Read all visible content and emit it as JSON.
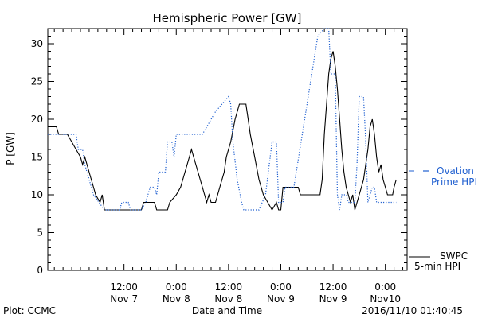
{
  "chart_data": {
    "type": "line",
    "title": "Hemispheric Power [GW]",
    "xlabel": "Date and Time",
    "ylabel": "P [GW]",
    "ylim": [
      0,
      32
    ],
    "yticks": [
      0,
      5,
      10,
      15,
      20,
      25,
      30
    ],
    "xlim": [
      "2016-11-06T18:30",
      "2016-11-10T05:00"
    ],
    "xticks": [
      {
        "t": "2016-11-07T12:00",
        "line1": "12:00",
        "line2": "Nov 7"
      },
      {
        "t": "2016-11-08T00:00",
        "line1": "0:00",
        "line2": "Nov 8"
      },
      {
        "t": "2016-11-08T12:00",
        "line1": "12:00",
        "line2": "Nov 8"
      },
      {
        "t": "2016-11-09T00:00",
        "line1": "0:00",
        "line2": "Nov 9"
      },
      {
        "t": "2016-11-09T12:00",
        "line1": "12:00",
        "line2": "Nov 9"
      },
      {
        "t": "2016-11-10T00:00",
        "line1": "0:00",
        "line2": "Nov10"
      }
    ],
    "grid": false,
    "series": [
      {
        "name": "SWPC 5-min HPI",
        "color": "#000000",
        "style": "solid",
        "points": [
          [
            "2016-11-06T18:30",
            19
          ],
          [
            "2016-11-06T20:30",
            19
          ],
          [
            "2016-11-06T21:00",
            18
          ],
          [
            "2016-11-06T23:00",
            18
          ],
          [
            "2016-11-07T00:00",
            17
          ],
          [
            "2016-11-07T01:00",
            16
          ],
          [
            "2016-11-07T02:00",
            15
          ],
          [
            "2016-11-07T02:30",
            14
          ],
          [
            "2016-11-07T03:00",
            15
          ],
          [
            "2016-11-07T04:00",
            13
          ],
          [
            "2016-11-07T05:00",
            11
          ],
          [
            "2016-11-07T05:30",
            10
          ],
          [
            "2016-11-07T06:30",
            9
          ],
          [
            "2016-11-07T07:00",
            10
          ],
          [
            "2016-11-07T07:30",
            8
          ],
          [
            "2016-11-07T11:00",
            8
          ],
          [
            "2016-11-07T16:00",
            8
          ],
          [
            "2016-11-07T16:30",
            9
          ],
          [
            "2016-11-07T19:00",
            9
          ],
          [
            "2016-11-07T19:30",
            8
          ],
          [
            "2016-11-07T22:00",
            8
          ],
          [
            "2016-11-07T22:30",
            9
          ],
          [
            "2016-11-08T00:00",
            10
          ],
          [
            "2016-11-08T01:00",
            11
          ],
          [
            "2016-11-08T02:00",
            13
          ],
          [
            "2016-11-08T03:00",
            15
          ],
          [
            "2016-11-08T03:30",
            16
          ],
          [
            "2016-11-08T04:00",
            15
          ],
          [
            "2016-11-08T05:00",
            13
          ],
          [
            "2016-11-08T06:00",
            11
          ],
          [
            "2016-11-08T06:30",
            10
          ],
          [
            "2016-11-08T07:00",
            9
          ],
          [
            "2016-11-08T07:30",
            10
          ],
          [
            "2016-11-08T08:00",
            9
          ],
          [
            "2016-11-08T09:00",
            9
          ],
          [
            "2016-11-08T09:30",
            10
          ],
          [
            "2016-11-08T10:00",
            11
          ],
          [
            "2016-11-08T11:00",
            13
          ],
          [
            "2016-11-08T11:30",
            15
          ],
          [
            "2016-11-08T12:30",
            17
          ],
          [
            "2016-11-08T13:30",
            20
          ],
          [
            "2016-11-08T14:30",
            22
          ],
          [
            "2016-11-08T16:00",
            22
          ],
          [
            "2016-11-08T16:30",
            20
          ],
          [
            "2016-11-08T17:00",
            18
          ],
          [
            "2016-11-08T18:00",
            15
          ],
          [
            "2016-11-08T19:00",
            12
          ],
          [
            "2016-11-08T20:00",
            10
          ],
          [
            "2016-11-08T21:00",
            9
          ],
          [
            "2016-11-08T22:00",
            8
          ],
          [
            "2016-11-08T23:00",
            9
          ],
          [
            "2016-11-08T23:30",
            8
          ],
          [
            "2016-11-09T00:00",
            8
          ],
          [
            "2016-11-09T00:30",
            11
          ],
          [
            "2016-11-09T02:00",
            11
          ],
          [
            "2016-11-09T04:00",
            11
          ],
          [
            "2016-11-09T04:30",
            10
          ],
          [
            "2016-11-09T07:30",
            10
          ],
          [
            "2016-11-09T09:00",
            10
          ],
          [
            "2016-11-09T09:30",
            12
          ],
          [
            "2016-11-09T10:00",
            18
          ],
          [
            "2016-11-09T10:30",
            22
          ],
          [
            "2016-11-09T11:00",
            26
          ],
          [
            "2016-11-09T11:30",
            28
          ],
          [
            "2016-11-09T12:00",
            29
          ],
          [
            "2016-11-09T12:30",
            27
          ],
          [
            "2016-11-09T13:00",
            24
          ],
          [
            "2016-11-09T13:30",
            20
          ],
          [
            "2016-11-09T14:00",
            16
          ],
          [
            "2016-11-09T14:30",
            13
          ],
          [
            "2016-11-09T15:00",
            11
          ],
          [
            "2016-11-09T15:30",
            10
          ],
          [
            "2016-11-09T16:00",
            9
          ],
          [
            "2016-11-09T16:30",
            10
          ],
          [
            "2016-11-09T17:00",
            8
          ],
          [
            "2016-11-09T18:00",
            10
          ],
          [
            "2016-11-09T19:00",
            12
          ],
          [
            "2016-11-09T20:00",
            16
          ],
          [
            "2016-11-09T20:30",
            19
          ],
          [
            "2016-11-09T21:00",
            20
          ],
          [
            "2016-11-09T21:30",
            18
          ],
          [
            "2016-11-09T22:00",
            15
          ],
          [
            "2016-11-09T22:30",
            13
          ],
          [
            "2016-11-09T23:00",
            14
          ],
          [
            "2016-11-09T23:30",
            12
          ],
          [
            "2016-11-10T00:00",
            11
          ],
          [
            "2016-11-10T00:30",
            10
          ],
          [
            "2016-11-10T01:40",
            10
          ],
          [
            "2016-11-10T02:00",
            11
          ],
          [
            "2016-11-10T02:30",
            12
          ]
        ]
      },
      {
        "name": "Ovation Prime HPI",
        "color": "#1f5fd0",
        "style": "dotted",
        "points": [
          [
            "2016-11-06T18:30",
            18
          ],
          [
            "2016-11-07T01:00",
            18
          ],
          [
            "2016-11-07T01:30",
            16
          ],
          [
            "2016-11-07T02:30",
            16
          ],
          [
            "2016-11-07T03:00",
            14
          ],
          [
            "2016-11-07T05:00",
            10
          ],
          [
            "2016-11-07T07:30",
            8
          ],
          [
            "2016-11-07T11:00",
            8
          ],
          [
            "2016-11-07T11:30",
            9
          ],
          [
            "2016-11-07T13:00",
            9
          ],
          [
            "2016-11-07T13:30",
            8
          ],
          [
            "2016-11-07T16:00",
            8
          ],
          [
            "2016-11-07T17:00",
            9
          ],
          [
            "2016-11-07T17:30",
            10
          ],
          [
            "2016-11-07T18:00",
            11
          ],
          [
            "2016-11-07T19:00",
            11
          ],
          [
            "2016-11-07T19:30",
            10
          ],
          [
            "2016-11-07T20:00",
            13
          ],
          [
            "2016-11-07T21:30",
            13
          ],
          [
            "2016-11-07T22:00",
            17
          ],
          [
            "2016-11-07T23:00",
            17
          ],
          [
            "2016-11-07T23:30",
            15
          ],
          [
            "2016-11-08T00:00",
            18
          ],
          [
            "2016-11-08T06:00",
            18
          ],
          [
            "2016-11-08T09:00",
            21
          ],
          [
            "2016-11-08T10:30",
            22
          ],
          [
            "2016-11-08T12:00",
            23
          ],
          [
            "2016-11-08T12:30",
            22
          ],
          [
            "2016-11-08T13:00",
            17
          ],
          [
            "2016-11-08T14:00",
            12
          ],
          [
            "2016-11-08T15:00",
            9
          ],
          [
            "2016-11-08T15:30",
            8
          ],
          [
            "2016-11-08T19:00",
            8
          ],
          [
            "2016-11-08T20:30",
            10
          ],
          [
            "2016-11-08T22:00",
            17
          ],
          [
            "2016-11-08T23:00",
            17
          ],
          [
            "2016-11-08T23:30",
            9
          ],
          [
            "2016-11-09T00:30",
            9
          ],
          [
            "2016-11-09T01:00",
            11
          ],
          [
            "2016-11-09T03:00",
            11
          ],
          [
            "2016-11-09T08:30",
            31
          ],
          [
            "2016-11-09T10:00",
            32
          ],
          [
            "2016-11-09T11:00",
            32
          ],
          [
            "2016-11-09T11:30",
            26
          ],
          [
            "2016-11-09T12:30",
            26
          ],
          [
            "2016-11-09T13:00",
            10
          ],
          [
            "2016-11-09T13:30",
            8
          ],
          [
            "2016-11-09T14:00",
            10
          ],
          [
            "2016-11-09T15:00",
            10
          ],
          [
            "2016-11-09T15:30",
            9
          ],
          [
            "2016-11-09T17:00",
            9
          ],
          [
            "2016-11-09T17:30",
            14
          ],
          [
            "2016-11-09T18:00",
            23
          ],
          [
            "2016-11-09T19:00",
            23
          ],
          [
            "2016-11-09T19:30",
            17
          ],
          [
            "2016-11-09T20:00",
            9
          ],
          [
            "2016-11-09T21:00",
            11
          ],
          [
            "2016-11-09T21:30",
            11
          ],
          [
            "2016-11-09T22:00",
            9
          ],
          [
            "2016-11-10T02:30",
            9
          ]
        ]
      }
    ]
  },
  "legend": {
    "ovation_line1": "Ovation",
    "ovation_line2": "Prime HPI",
    "swpc_line1": "SWPC",
    "swpc_line2": "5-min HPI"
  },
  "footer": {
    "plot_source": "Plot: CCMC",
    "timestamp": "2016/11/10 01:40:45"
  },
  "colors": {
    "ovation": "#1f5fd0",
    "swpc": "#000000",
    "axis": "#000000"
  }
}
